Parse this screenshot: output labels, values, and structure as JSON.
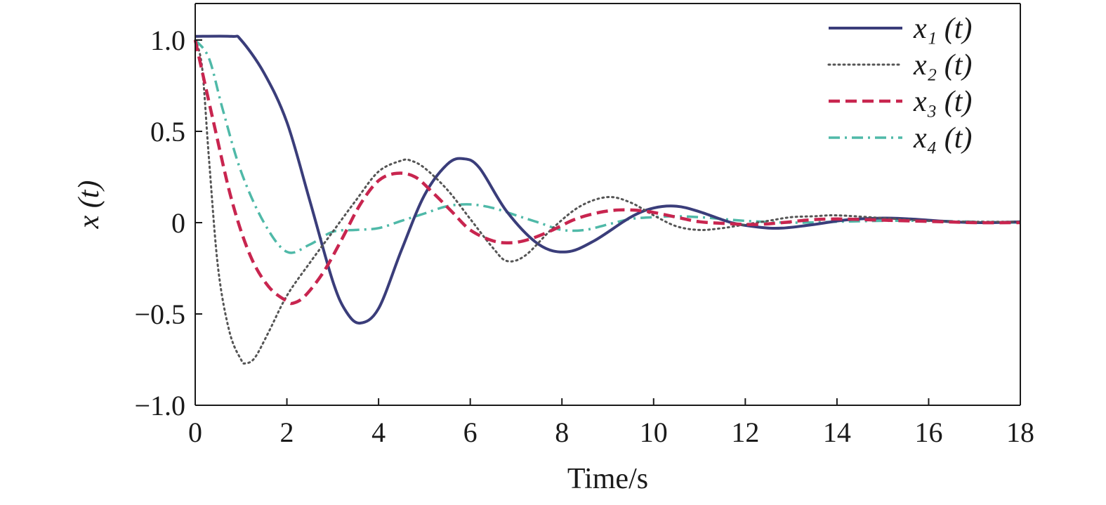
{
  "chart_data": {
    "type": "line",
    "title": "",
    "xlabel": "Time/s",
    "ylabel": "x (t)",
    "xlim": [
      0,
      18
    ],
    "ylim": [
      -1.0,
      1.2
    ],
    "xticks": [
      0,
      2,
      4,
      6,
      8,
      10,
      12,
      14,
      16,
      18
    ],
    "xtick_labels": [
      "0",
      "2",
      "4",
      "6",
      "8",
      "10",
      "12",
      "14",
      "16",
      "18"
    ],
    "yticks": [
      -1.0,
      -0.5,
      0,
      0.5,
      1.0
    ],
    "ytick_labels": [
      "−1.0",
      "−0.5",
      "0",
      "0.5",
      "1.0"
    ],
    "grid": false,
    "legend_position": "top-right",
    "series": [
      {
        "name": "x₁ (t)",
        "color": "#3a3d7a",
        "style": "solid",
        "x": [
          0,
          0.8,
          1.0,
          1.5,
          2.0,
          2.5,
          3.0,
          3.3,
          3.6,
          4.0,
          4.5,
          5.0,
          5.5,
          5.85,
          6.2,
          6.8,
          7.5,
          8.1,
          8.7,
          9.5,
          10.0,
          10.5,
          11.0,
          11.7,
          12.3,
          12.8,
          13.5,
          14.2,
          15.0,
          15.6,
          16.5,
          17.3,
          18.0
        ],
        "y": [
          1.02,
          1.02,
          1.0,
          0.82,
          0.55,
          0.12,
          -0.32,
          -0.49,
          -0.55,
          -0.47,
          -0.15,
          0.15,
          0.32,
          0.35,
          0.3,
          0.06,
          -0.12,
          -0.16,
          -0.1,
          0.03,
          0.08,
          0.09,
          0.06,
          0.0,
          -0.025,
          -0.03,
          -0.01,
          0.015,
          0.025,
          0.02,
          0.005,
          0.0,
          0.005
        ]
      },
      {
        "name": "x₂ (t)",
        "color": "#555555",
        "style": "dotted",
        "x": [
          0,
          0.15,
          0.3,
          0.5,
          0.75,
          1.0,
          1.1,
          1.3,
          1.6,
          2.0,
          2.5,
          3.0,
          3.5,
          4.0,
          4.5,
          4.7,
          5.0,
          5.5,
          6.0,
          6.5,
          6.8,
          7.2,
          7.8,
          8.4,
          9.0,
          9.5,
          10.0,
          10.5,
          11.0,
          11.5,
          12.0,
          12.5,
          13.0,
          13.5,
          14.0,
          15.0,
          16.0,
          17.0,
          18.0
        ],
        "y": [
          1.0,
          0.85,
          0.35,
          -0.25,
          -0.6,
          -0.75,
          -0.77,
          -0.74,
          -0.6,
          -0.4,
          -0.22,
          -0.05,
          0.12,
          0.28,
          0.34,
          0.34,
          0.3,
          0.18,
          0.02,
          -0.14,
          -0.21,
          -0.18,
          -0.03,
          0.09,
          0.14,
          0.11,
          0.04,
          -0.02,
          -0.04,
          -0.03,
          -0.01,
          0.01,
          0.03,
          0.035,
          0.04,
          0.025,
          0.01,
          0.005,
          0.005
        ]
      },
      {
        "name": "x₃ (t)",
        "color": "#c8254f",
        "style": "dashed",
        "x": [
          0,
          0.4,
          0.8,
          1.2,
          1.6,
          2.0,
          2.15,
          2.4,
          2.8,
          3.2,
          3.6,
          4.0,
          4.4,
          4.8,
          5.2,
          5.6,
          6.0,
          6.5,
          6.9,
          7.3,
          7.8,
          8.3,
          8.9,
          9.4,
          9.9,
          10.5,
          11.0,
          11.6,
          12.2,
          12.8,
          13.4,
          14.0,
          14.8,
          15.5,
          16.3,
          17.0,
          18.0
        ],
        "y": [
          1.0,
          0.55,
          0.12,
          -0.18,
          -0.35,
          -0.43,
          -0.44,
          -0.4,
          -0.27,
          -0.09,
          0.1,
          0.23,
          0.27,
          0.25,
          0.16,
          0.06,
          -0.04,
          -0.1,
          -0.11,
          -0.09,
          -0.04,
          0.02,
          0.06,
          0.07,
          0.06,
          0.03,
          0.005,
          -0.005,
          -0.01,
          0.0,
          0.015,
          0.02,
          0.015,
          0.01,
          0.005,
          0.0,
          0.0
        ]
      },
      {
        "name": "x₄ (t)",
        "color": "#4fb9a8",
        "style": "dashdot",
        "x": [
          0,
          0.3,
          0.6,
          1.0,
          1.5,
          2.0,
          2.5,
          3.0,
          3.5,
          4.0,
          4.5,
          5.0,
          5.5,
          6.0,
          6.5,
          7.0,
          7.5,
          8.0,
          8.5,
          9.0,
          9.5,
          10.0,
          10.5,
          11.0,
          11.5,
          12.0,
          13.0,
          14.0,
          15.0,
          16.0,
          17.0,
          18.0
        ],
        "y": [
          1.0,
          0.9,
          0.62,
          0.28,
          0.0,
          -0.16,
          -0.12,
          -0.05,
          -0.04,
          -0.03,
          0.01,
          0.05,
          0.09,
          0.1,
          0.08,
          0.04,
          0.0,
          -0.04,
          -0.04,
          -0.01,
          0.02,
          0.03,
          0.035,
          0.03,
          0.02,
          0.01,
          0.0,
          0.005,
          0.01,
          0.01,
          0.005,
          0.0
        ]
      }
    ]
  }
}
